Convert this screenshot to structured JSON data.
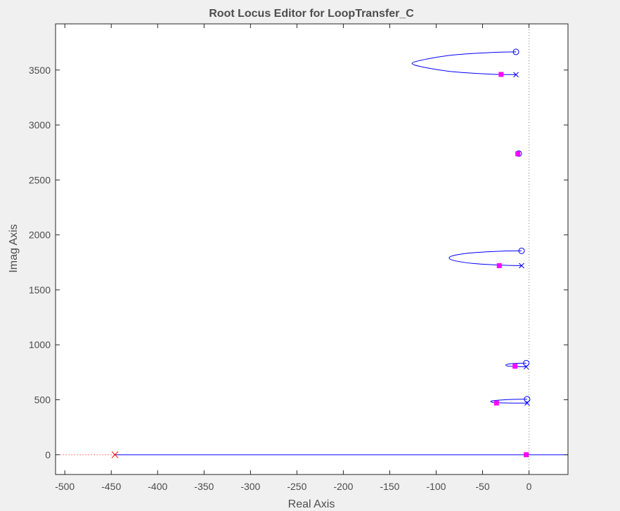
{
  "colors": {
    "figure_bg": "#f0f0f0",
    "axes_bg": "#ffffff",
    "axes_line": "#262626",
    "text": "#4d4d4d",
    "locus": "#0000ff",
    "closed_loop_pole": "#ff00ff",
    "compensator_pole": "#ff0000",
    "imag_axis_dotted": "#7f7f7f"
  },
  "chart_data": {
    "type": "line",
    "title": "Root Locus Editor for LoopTransfer_C",
    "xlabel": "Real Axis",
    "ylabel": "Imag Axis",
    "xlim": [
      -510,
      42
    ],
    "ylim": [
      -180,
      3920
    ],
    "grid": false,
    "x_ticks": [
      -500,
      -450,
      -400,
      -350,
      -300,
      -250,
      -200,
      -150,
      -100,
      -50,
      0
    ],
    "x_tick_labels": [
      "-500",
      "-450",
      "-400",
      "-350",
      "-300",
      "-250",
      "-200",
      "-150",
      "-100",
      "-50",
      "0"
    ],
    "y_ticks": [
      0,
      500,
      1000,
      1500,
      2000,
      2500,
      3000,
      3500
    ],
    "y_tick_labels": [
      "0",
      "500",
      "1000",
      "1500",
      "2000",
      "2500",
      "3000",
      "3500"
    ],
    "locus_branches": [
      {
        "x": [
          -14,
          -40,
          -80,
          -110,
          -126,
          -110,
          -80,
          -40,
          -14
        ],
        "y": [
          3665,
          3660,
          3638,
          3600,
          3560,
          3520,
          3483,
          3462,
          3458
        ]
      },
      {
        "x": [
          -12,
          -14,
          -12
        ],
        "y": [
          2740,
          2738,
          2736
        ]
      },
      {
        "x": [
          -8,
          -30,
          -60,
          -80,
          -86,
          -80,
          -60,
          -30,
          -8
        ],
        "y": [
          1855,
          1852,
          1838,
          1815,
          1790,
          1765,
          1740,
          1725,
          1720
        ]
      },
      {
        "x": [
          -3,
          -12,
          -22,
          -25,
          -22,
          -12,
          -3
        ],
        "y": [
          833,
          832,
          825,
          815,
          806,
          802,
          800
        ]
      },
      {
        "x": [
          -2,
          -15,
          -30,
          -40,
          -40,
          -30,
          -15,
          -2
        ],
        "y": [
          505,
          504,
          498,
          490,
          478,
          472,
          470,
          470
        ]
      },
      {
        "x": [
          -446,
          42
        ],
        "y": [
          0,
          0
        ]
      }
    ],
    "open_loop_poles": [
      {
        "x": -14,
        "y": 3458
      },
      {
        "x": -8,
        "y": 1720
      },
      {
        "x": -3,
        "y": 800
      },
      {
        "x": -2,
        "y": 470
      }
    ],
    "open_loop_zeros": [
      {
        "x": -14,
        "y": 3665
      },
      {
        "x": -11,
        "y": 2740
      },
      {
        "x": -8,
        "y": 1855
      },
      {
        "x": -3,
        "y": 833
      },
      {
        "x": -2,
        "y": 505
      }
    ],
    "closed_loop_poles": [
      {
        "x": -30,
        "y": 3460
      },
      {
        "x": -12,
        "y": 2738
      },
      {
        "x": -32,
        "y": 1720
      },
      {
        "x": -15,
        "y": 805
      },
      {
        "x": -35,
        "y": 470
      },
      {
        "x": -3,
        "y": 0
      }
    ],
    "compensator_poles": [
      {
        "x": -446,
        "y": 0
      }
    ],
    "dotted_real_axis": {
      "x": [
        -505,
        -446
      ],
      "y": [
        0,
        0
      ]
    },
    "imag_axis_line": {
      "x": 0
    }
  }
}
